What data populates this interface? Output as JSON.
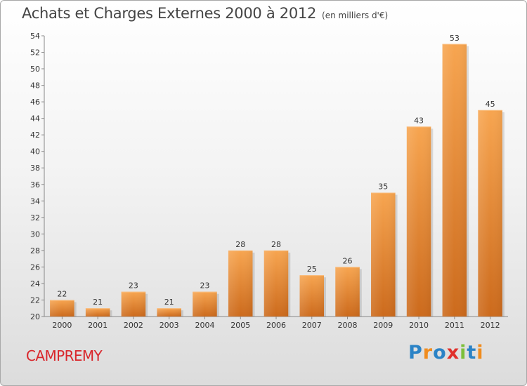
{
  "header": {
    "title": "Achats et Charges Externes 2000 à 2012",
    "unit": "(en milliers d'€)"
  },
  "footer": {
    "location": "CAMPREMY",
    "brand": "Proxiti",
    "brand_letters": [
      {
        "ch": "P",
        "color": "#2b83c6"
      },
      {
        "ch": "r",
        "color": "#f08c1e"
      },
      {
        "ch": "o",
        "color": "#2b83c6"
      },
      {
        "ch": "x",
        "color": "#e0302b"
      },
      {
        "ch": "i",
        "color": "#7cbf3a"
      },
      {
        "ch": "t",
        "color": "#2b83c6"
      },
      {
        "ch": "i",
        "color": "#f08c1e"
      }
    ]
  },
  "chart_data": {
    "type": "bar",
    "title": "Achats et Charges Externes 2000 à 2012",
    "subtitle": "(en milliers d'€)",
    "xlabel": "",
    "ylabel": "",
    "categories": [
      "2000",
      "2001",
      "2002",
      "2003",
      "2004",
      "2005",
      "2006",
      "2007",
      "2008",
      "2009",
      "2010",
      "2011",
      "2012"
    ],
    "values": [
      22,
      21,
      23,
      21,
      23,
      28,
      28,
      25,
      26,
      35,
      43,
      53,
      45
    ],
    "ylim": [
      20,
      54
    ],
    "yticks": [
      20,
      22,
      24,
      26,
      28,
      30,
      32,
      34,
      36,
      38,
      40,
      42,
      44,
      46,
      48,
      50,
      52,
      54
    ],
    "grid": false,
    "legend": "none",
    "bar_color": "#f0902f",
    "bar_color_dark": "#c8641a"
  }
}
